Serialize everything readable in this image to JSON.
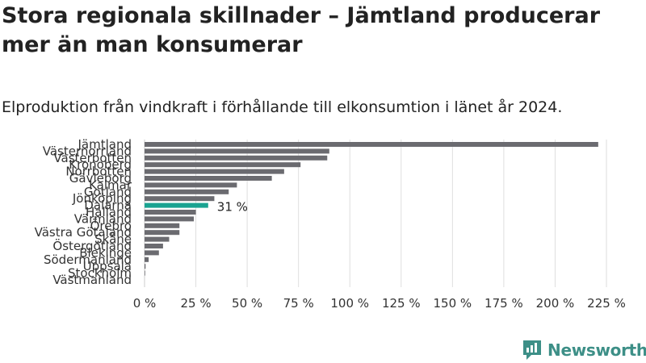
{
  "title": "Stora regionala skillnader – Jämtland producerar mer än man konsumerar",
  "subtitle": "Elproduktion från vindkraft i förhållande till elkonsumtion i länet år 2024.",
  "logo": {
    "text": "Newsworthy",
    "icon": "bar-chart-logo-icon",
    "color": "#3d8f87"
  },
  "chart_data": {
    "type": "bar",
    "orientation": "horizontal",
    "categories": [
      "Jämtland",
      "Västernorrland",
      "Västerbotten",
      "Kronoberg",
      "Norrbotten",
      "Gävleborg",
      "Kalmar",
      "Gotland",
      "Jönköping",
      "Dalarna",
      "Halland",
      "Värmland",
      "Örebro",
      "Västra Götaland",
      "Skåne",
      "Östergötland",
      "Blekinge",
      "Södermanland",
      "Uppsala",
      "Stockholm",
      "Västmanland"
    ],
    "values": [
      221,
      90,
      89,
      76,
      68,
      62,
      45,
      41,
      34,
      31,
      25,
      24,
      17,
      17,
      12,
      9,
      7,
      2,
      0.5,
      0.3,
      0
    ],
    "unit": "%",
    "highlight": {
      "category": "Dalarna",
      "label": "31 %",
      "color": "#1aa391"
    },
    "bar_color": "#6b6b70",
    "xlim": [
      0,
      225
    ],
    "xticks": [
      0,
      25,
      50,
      75,
      100,
      125,
      150,
      175,
      200,
      225
    ],
    "xtick_labels": [
      "0 %",
      "25 %",
      "50 %",
      "75 %",
      "100 %",
      "125 %",
      "150 %",
      "175 %",
      "200 %",
      "225 %"
    ],
    "grid": true
  }
}
